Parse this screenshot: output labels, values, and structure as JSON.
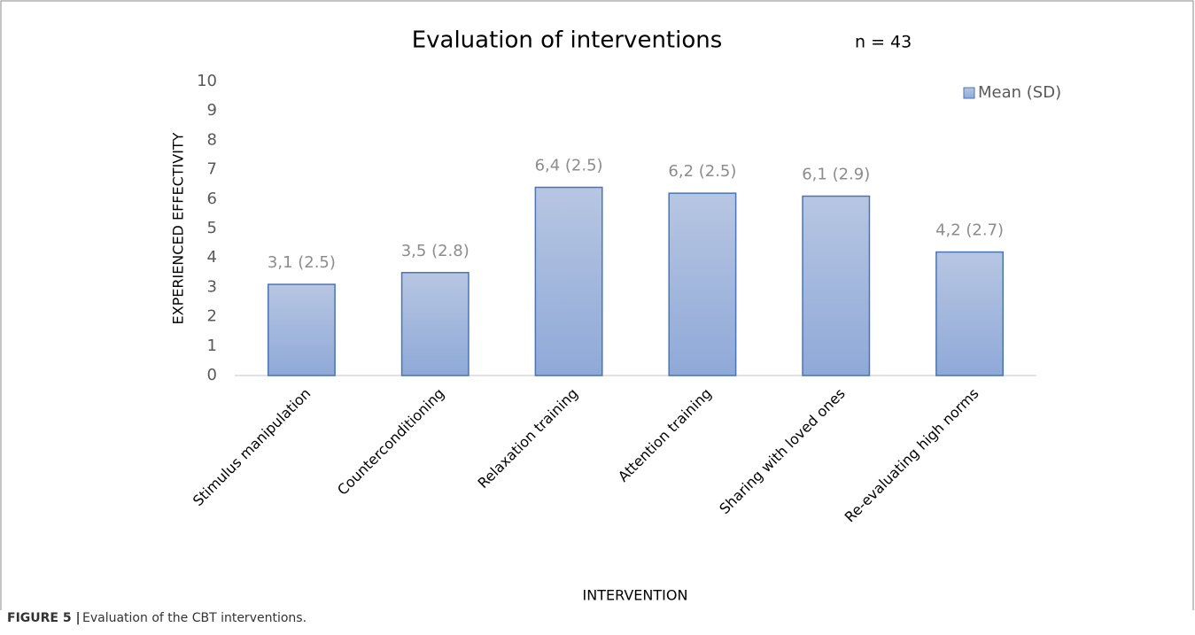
{
  "chart_data": {
    "type": "bar",
    "title": "Evaluation of interventions",
    "annotation": "n = 43",
    "x_label": "INTERVENTION",
    "y_label": "EXPERIENCED EFFECTIVITY",
    "categories": [
      "Stimulus manipulation",
      "Counterconditioning",
      "Relaxation training",
      "Attention training",
      "Sharing with loved ones",
      "Re-evaluating high norms"
    ],
    "series": [
      {
        "name": "Mean (SD)",
        "color": "#4a74b4",
        "values": [
          3.1,
          3.5,
          6.4,
          6.2,
          6.1,
          4.2
        ],
        "value_labels": [
          "3,1 (2.5)",
          "3,5 (2.8)",
          "6,4 (2.5)",
          "6,2 (2.5)",
          "6,1 (2.9)",
          "4,2 (2.7)"
        ]
      }
    ],
    "ylim": [
      0,
      10
    ],
    "yticks": [
      0,
      1,
      2,
      3,
      4,
      5,
      6,
      7,
      8,
      9,
      10
    ],
    "grid": false,
    "legend": "top-right"
  },
  "caption_label": "FIGURE 5 |",
  "caption": "Evaluation of the CBT interventions."
}
